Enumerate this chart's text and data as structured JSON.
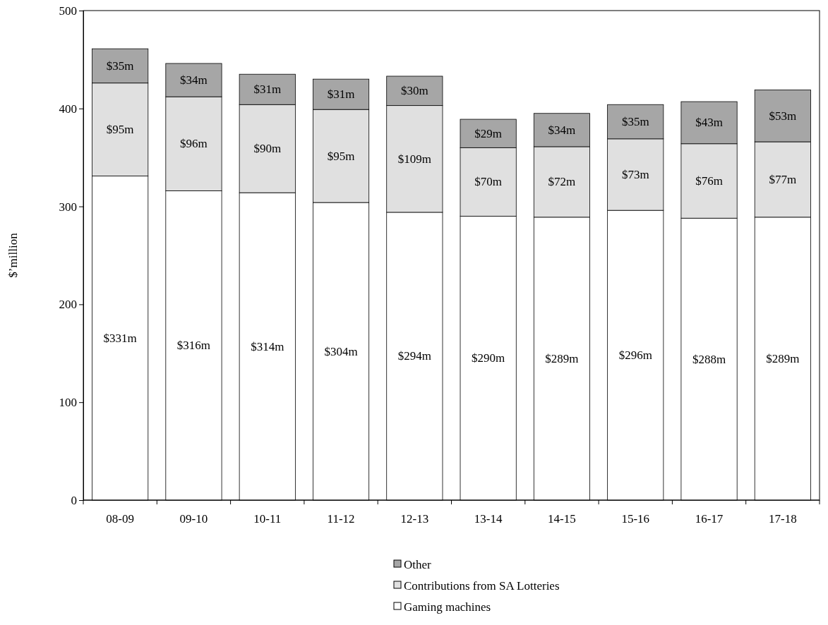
{
  "chart_data": {
    "type": "bar",
    "stacked": true,
    "ylabel": "$’million",
    "categories": [
      "08-09",
      "09-10",
      "10-11",
      "11-12",
      "12-13",
      "13-14",
      "14-15",
      "15-16",
      "16-17",
      "17-18"
    ],
    "series": [
      {
        "name": "Gaming machines",
        "color": "#ffffff",
        "values": [
          331,
          316,
          314,
          304,
          294,
          290,
          289,
          296,
          288,
          289
        ],
        "value_labels": [
          "$331m",
          "$316m",
          "$314m",
          "$304m",
          "$294m",
          "$290m",
          "$289m",
          "$296m",
          "$288m",
          "$289m"
        ]
      },
      {
        "name": "Contributions from SA Lotteries",
        "color": "#e0e0e0",
        "values": [
          95,
          96,
          90,
          95,
          109,
          70,
          72,
          73,
          76,
          77
        ],
        "value_labels": [
          "$95m",
          "$96m",
          "$90m",
          "$95m",
          "$109m",
          "$70m",
          "$72m",
          "$73m",
          "$76m",
          "$77m"
        ]
      },
      {
        "name": "Other",
        "color": "#a6a6a6",
        "values": [
          35,
          34,
          31,
          31,
          30,
          29,
          34,
          35,
          43,
          53
        ],
        "value_labels": [
          "$35m",
          "$34m",
          "$31m",
          "$31m",
          "$30m",
          "$29m",
          "$34m",
          "$35m",
          "$43m",
          "$53m"
        ]
      }
    ],
    "ylim": [
      0,
      500
    ],
    "yticks": [
      0,
      100,
      200,
      300,
      400,
      500
    ],
    "grid": false,
    "legend": "bottom"
  }
}
